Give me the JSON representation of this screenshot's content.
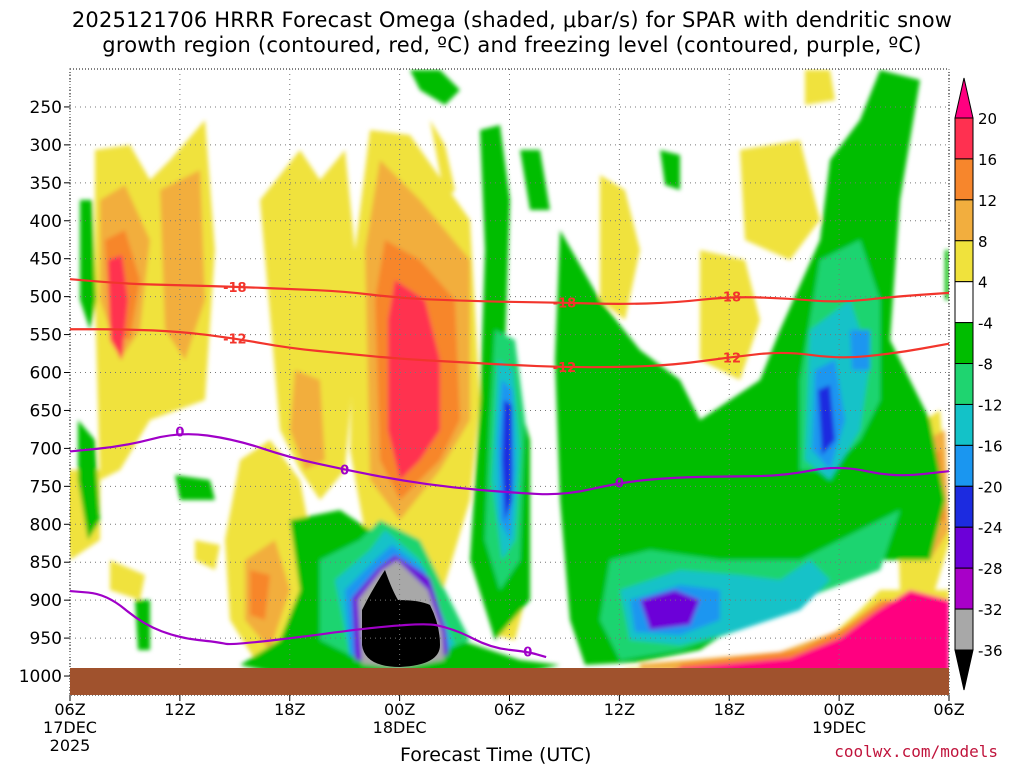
{
  "chart_data": {
    "type": "heatmap",
    "title_line1": "2025121706 HRRR Forecast Omega (shaded, μbar/s) for SPAR with dendritic snow",
    "title_line2": "growth region (contoured, red, ºC) and freezing level (contoured, purple, ºC)",
    "xlabel": "Forecast Time (UTC)",
    "ylabel": "",
    "x_ticks": [
      {
        "hour": 0,
        "label": "06Z",
        "sub": "17DEC",
        "sub2": "2025"
      },
      {
        "hour": 6,
        "label": "12Z",
        "sub": "",
        "sub2": ""
      },
      {
        "hour": 12,
        "label": "18Z",
        "sub": "",
        "sub2": ""
      },
      {
        "hour": 18,
        "label": "00Z",
        "sub": "18DEC",
        "sub2": ""
      },
      {
        "hour": 24,
        "label": "06Z",
        "sub": "",
        "sub2": ""
      },
      {
        "hour": 30,
        "label": "12Z",
        "sub": "",
        "sub2": ""
      },
      {
        "hour": 36,
        "label": "18Z",
        "sub": "",
        "sub2": ""
      },
      {
        "hour": 42,
        "label": "00Z",
        "sub": "19DEC",
        "sub2": ""
      },
      {
        "hour": 48,
        "label": "06Z",
        "sub": "",
        "sub2": ""
      }
    ],
    "y_ticks": [
      250,
      300,
      350,
      400,
      450,
      500,
      550,
      600,
      650,
      700,
      750,
      800,
      850,
      900,
      950,
      1000
    ],
    "y_range_hpa": [
      200,
      1025
    ],
    "x_range_hours": [
      0,
      48
    ],
    "colorbar_labels": [
      "20",
      "16",
      "12",
      "8",
      "4",
      "-4",
      "-8",
      "-12",
      "-16",
      "-20",
      "-24",
      "-28",
      "-32",
      "-36"
    ],
    "colorbar_colors": [
      "#ff0080",
      "#ff3050",
      "#f7862c",
      "#f2ae3e",
      "#f0e23c",
      "#ffffff",
      "#00bd00",
      "#1fd470",
      "#13c2c8",
      "#1a96f0",
      "#1c2be0",
      "#6c00d8",
      "#a800c8",
      "#a8a8a8",
      "#000000"
    ],
    "series": [
      {
        "name": "-18",
        "kind": "DGZ isotherm",
        "color": "#f2352c",
        "x": [
          0,
          3,
          6,
          9,
          12,
          15,
          18,
          21,
          24,
          27,
          30,
          33,
          36,
          39,
          42,
          45,
          48
        ],
        "y": [
          477,
          483,
          485,
          487,
          490,
          493,
          502,
          505,
          507,
          508,
          510,
          508,
          500,
          502,
          508,
          500,
          495
        ]
      },
      {
        "name": "-12",
        "kind": "DGZ isotherm",
        "color": "#f2352c",
        "x": [
          0,
          3,
          6,
          9,
          12,
          15,
          18,
          21,
          24,
          27,
          30,
          33,
          36,
          39,
          42,
          45,
          48
        ],
        "y": [
          543,
          543,
          546,
          555,
          568,
          575,
          582,
          586,
          590,
          593,
          593,
          590,
          580,
          572,
          582,
          575,
          562
        ]
      },
      {
        "name": "0",
        "kind": "freezing level",
        "color": "#a000c8",
        "x": [
          0,
          3,
          6,
          9,
          12,
          15,
          18,
          21,
          24,
          27,
          30,
          33,
          36,
          39,
          42,
          45,
          48
        ],
        "y": [
          704,
          697,
          678,
          688,
          712,
          728,
          742,
          752,
          758,
          762,
          745,
          738,
          737,
          736,
          722,
          738,
          730
        ]
      },
      {
        "name": "0 (lower)",
        "kind": "freezing level",
        "color": "#a000c8",
        "x": [
          0,
          2,
          4,
          6,
          8,
          9,
          19,
          21,
          23,
          25,
          26
        ],
        "y": [
          888,
          892,
          932,
          950,
          955,
          960,
          928,
          938,
          963,
          968,
          975
        ]
      }
    ],
    "contour_labels": [
      "-18",
      "-12",
      "0"
    ],
    "surface_color": "#a0522d",
    "credit": "coolwx.com/models"
  }
}
